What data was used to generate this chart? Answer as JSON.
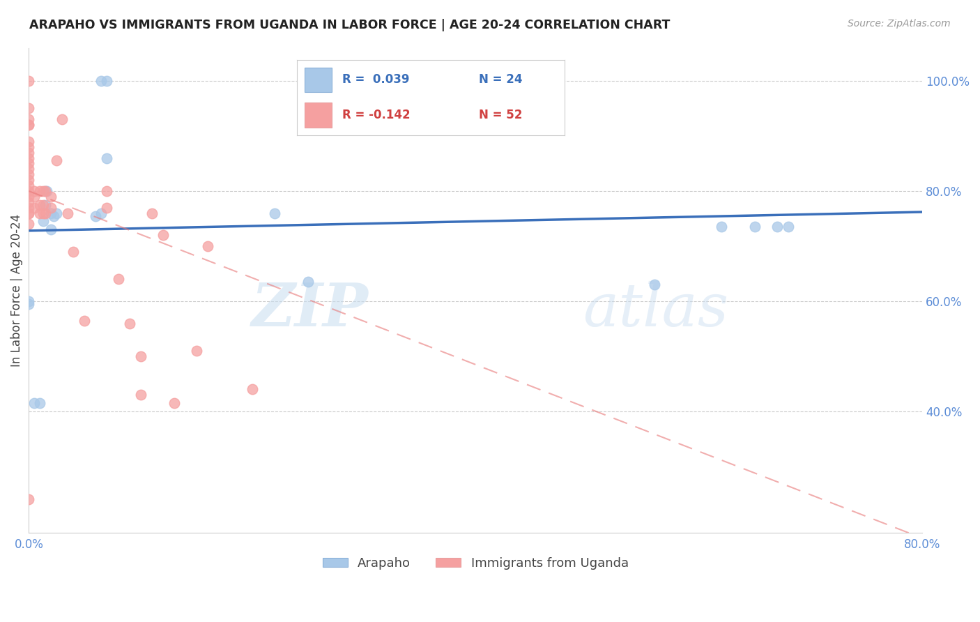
{
  "title": "ARAPAHO VS IMMIGRANTS FROM UGANDA IN LABOR FORCE | AGE 20-24 CORRELATION CHART",
  "source": "Source: ZipAtlas.com",
  "ylabel": "In Labor Force | Age 20-24",
  "xlim": [
    0.0,
    0.8
  ],
  "ylim": [
    0.18,
    1.06
  ],
  "yticks": [
    0.4,
    0.6,
    0.8,
    1.0
  ],
  "ytick_labels": [
    "40.0%",
    "60.0%",
    "80.0%",
    "100.0%"
  ],
  "blue_color": "#a8c8e8",
  "pink_color": "#f5a0a0",
  "blue_line_color": "#3a6fba",
  "pink_line_color": "#e87878",
  "watermark_zip": "ZIP",
  "watermark_atlas": "atlas",
  "legend_r_blue": "R =  0.039",
  "legend_n_blue": "N = 24",
  "legend_r_pink": "R = -0.142",
  "legend_n_pink": "N = 52",
  "blue_line_x0": 0.0,
  "blue_line_y0": 0.728,
  "blue_line_x1": 0.8,
  "blue_line_y1": 0.762,
  "pink_line_x0": 0.0,
  "pink_line_y0": 0.8,
  "pink_line_x1": 0.8,
  "pink_line_y1": 0.17,
  "blue_x": [
    0.0,
    0.005,
    0.01,
    0.013,
    0.015,
    0.016,
    0.02,
    0.022,
    0.06,
    0.065,
    0.065,
    0.07,
    0.07,
    0.22,
    0.25,
    0.56,
    0.62,
    0.65,
    0.67,
    0.68,
    0.0,
    0.015,
    0.02,
    0.025
  ],
  "blue_y": [
    0.595,
    0.415,
    0.415,
    0.745,
    0.775,
    0.8,
    0.73,
    0.755,
    0.755,
    0.76,
    1.0,
    1.0,
    0.86,
    0.76,
    0.635,
    0.63,
    0.735,
    0.735,
    0.735,
    0.735,
    0.6,
    0.8,
    0.76,
    0.76
  ],
  "pink_x": [
    0.0,
    0.0,
    0.0,
    0.0,
    0.0,
    0.0,
    0.0,
    0.0,
    0.0,
    0.0,
    0.0,
    0.0,
    0.0,
    0.0,
    0.0,
    0.0,
    0.005,
    0.005,
    0.005,
    0.01,
    0.01,
    0.01,
    0.013,
    0.013,
    0.013,
    0.015,
    0.015,
    0.02,
    0.02,
    0.025,
    0.03,
    0.035,
    0.04,
    0.05,
    0.07,
    0.07,
    0.08,
    0.09,
    0.1,
    0.1,
    0.11,
    0.12,
    0.13,
    0.15,
    0.16,
    0.2,
    0.0,
    0.0,
    0.0,
    0.0,
    0.0,
    0.0
  ],
  "pink_y": [
    0.76,
    0.77,
    0.78,
    0.79,
    0.8,
    0.81,
    0.82,
    0.83,
    0.85,
    0.87,
    0.89,
    0.92,
    1.0,
    0.95,
    0.93,
    0.92,
    0.77,
    0.79,
    0.8,
    0.76,
    0.775,
    0.8,
    0.76,
    0.775,
    0.8,
    0.76,
    0.8,
    0.77,
    0.79,
    0.855,
    0.93,
    0.76,
    0.69,
    0.565,
    0.77,
    0.8,
    0.64,
    0.56,
    0.43,
    0.5,
    0.76,
    0.72,
    0.415,
    0.51,
    0.7,
    0.44,
    0.24,
    0.74,
    0.76,
    0.84,
    0.86,
    0.88
  ]
}
